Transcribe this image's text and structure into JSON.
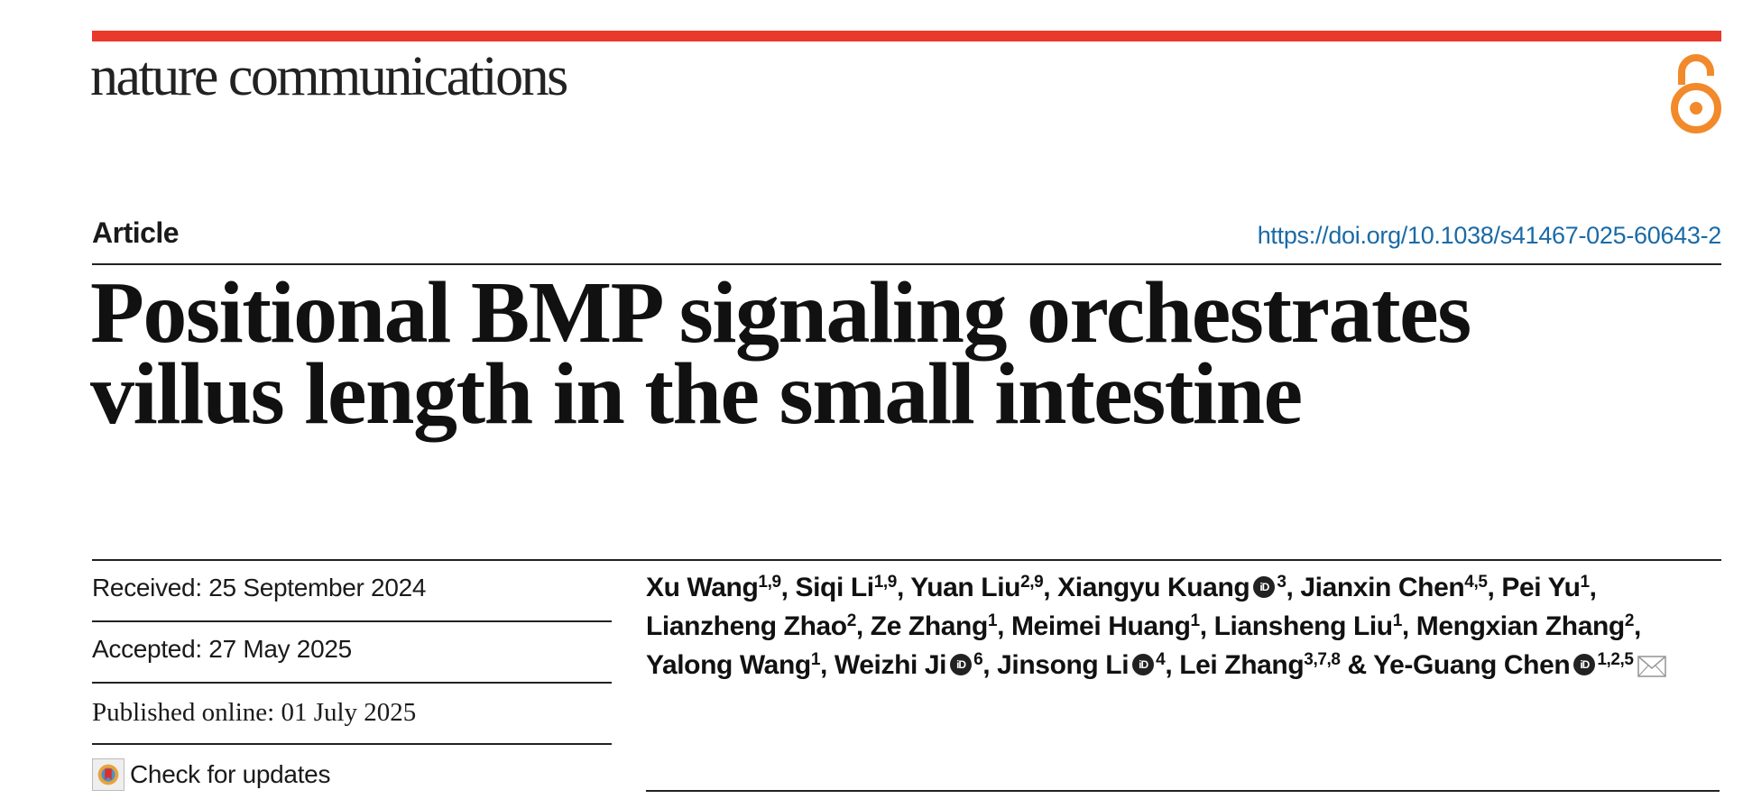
{
  "journal": {
    "name": "nature communications"
  },
  "article": {
    "type": "Article",
    "doi": "https://doi.org/10.1038/s41467-025-60643-2",
    "title_line1": "Positional BMP signaling orchestrates",
    "title_line2": "villus length in the small intestine"
  },
  "dates": {
    "received": "Received: 25 September 2024",
    "accepted": "Accepted: 27 May 2025",
    "published": "Published online: 01 July 2025"
  },
  "check_updates": {
    "label": "Check for updates"
  },
  "authors": [
    {
      "name": "Xu Wang",
      "aff": "1,9",
      "orcid": false,
      "sep": ", "
    },
    {
      "name": "Siqi Li",
      "aff": "1,9",
      "orcid": false,
      "sep": ", "
    },
    {
      "name": "Yuan Liu",
      "aff": "2,9",
      "orcid": false,
      "sep": ", "
    },
    {
      "name": "Xiangyu Kuang",
      "aff": "3",
      "orcid": true,
      "sep": ", "
    },
    {
      "name": "Jianxin Chen",
      "aff": "4,5",
      "orcid": false,
      "sep": ", "
    },
    {
      "name": "Pei Yu",
      "aff": "1",
      "orcid": false,
      "sep": ", "
    },
    {
      "name": "Lianzheng Zhao",
      "aff": "2",
      "orcid": false,
      "sep": ", "
    },
    {
      "name": "Ze Zhang",
      "aff": "1",
      "orcid": false,
      "sep": ", "
    },
    {
      "name": "Meimei Huang",
      "aff": "1",
      "orcid": false,
      "sep": ", "
    },
    {
      "name": "Liansheng Liu",
      "aff": "1",
      "orcid": false,
      "sep": ", "
    },
    {
      "name": "Mengxian Zhang",
      "aff": "2",
      "orcid": false,
      "sep": ", "
    },
    {
      "name": "Yalong Wang",
      "aff": "1",
      "orcid": false,
      "sep": ", "
    },
    {
      "name": "Weizhi Ji",
      "aff": "6",
      "orcid": true,
      "sep": ", "
    },
    {
      "name": "Jinsong Li",
      "aff": "4",
      "orcid": true,
      "sep": ", "
    },
    {
      "name": "Lei Zhang",
      "aff": "3,7,8",
      "orcid": false,
      "sep": " & "
    },
    {
      "name": "Ye-Guang Chen",
      "aff": "1,2,5",
      "orcid": true,
      "sep": ""
    }
  ],
  "icons": {
    "open_access": "open-access-lock-icon",
    "orcid": "orcid-icon",
    "email": "envelope-icon",
    "check_updates": "crossmark-icon"
  },
  "colors": {
    "accent_bar": "#e8392b",
    "open_access": "#f2892b",
    "doi_link": "#1a6aa6"
  }
}
